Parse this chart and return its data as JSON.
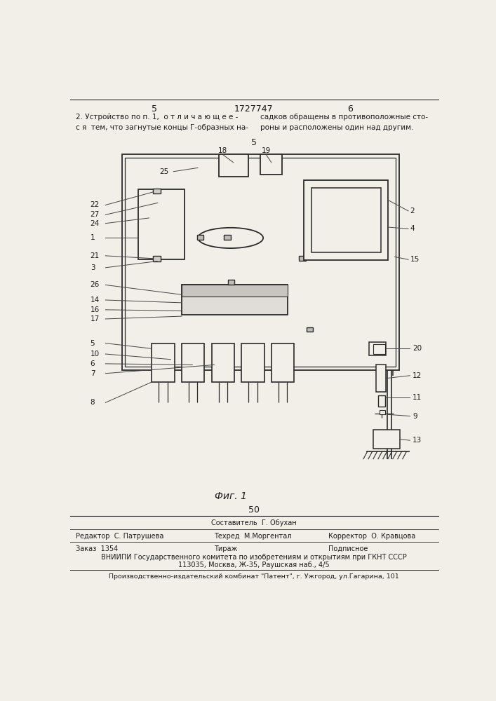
{
  "page_width": 7.07,
  "page_height": 10.0,
  "bg_color": "#f2efe9",
  "page_num_left": "5",
  "page_num_center": "1727747",
  "page_num_right": "6",
  "header_text_left": "2. Устройство по п. 1,  о т л и ч а ю щ е е -\nс я  тем, что загнутые концы Г-образных на-",
  "header_text_right": "садков обращены в противоположные сто-\nроны и расположены один над другим.",
  "fig_label": "Фиг. 1",
  "page_num_bottom": "50",
  "footer_line1_left": "Редактор  С. Патрушева",
  "footer_line1_mid": "Техред  М.Моргентал",
  "footer_line1_right": "Корректор  О. Кравцова",
  "footer_line2_left": "Заказ  1354",
  "footer_line2_mid": "Тираж",
  "footer_line2_right": "Подписное",
  "footer_line3": "ВНИИПИ Государственного комитета по изобретениям и открытиям при ГКНТ СССР",
  "footer_line4": "113035, Москва, Ж-35, Раушская наб., 4/5",
  "footer_bottom_line": "Производственно-издательский комбинат \"Патент\", г. Ужгород, ул.Гагарина, 101",
  "text_color": "#1a1a1a",
  "line_color": "#2a2a2a"
}
